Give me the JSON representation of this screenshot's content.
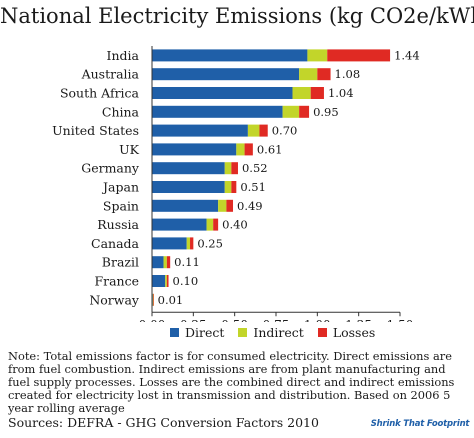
{
  "title": "National Electricity Emissions (kg CO2e/kWh)",
  "chart_data": {
    "type": "bar",
    "orientation": "horizontal",
    "stacked": true,
    "categories": [
      "India",
      "Australia",
      "South Africa",
      "China",
      "United States",
      "UK",
      "Germany",
      "Japan",
      "Spain",
      "Russia",
      "Canada",
      "Brazil",
      "France",
      "Norway"
    ],
    "totals": [
      "1.44",
      "1.08",
      "1.04",
      "0.95",
      "0.70",
      "0.61",
      "0.52",
      "0.51",
      "0.49",
      "0.40",
      "0.25",
      "0.11",
      "0.10",
      "0.01"
    ],
    "series": [
      {
        "name": "Direct",
        "color": "#1f5fa8",
        "values": [
          0.94,
          0.89,
          0.85,
          0.79,
          0.58,
          0.51,
          0.44,
          0.44,
          0.4,
          0.33,
          0.21,
          0.07,
          0.08,
          0.005
        ]
      },
      {
        "name": "Indirect",
        "color": "#c2d52a",
        "values": [
          0.12,
          0.11,
          0.11,
          0.1,
          0.07,
          0.05,
          0.04,
          0.04,
          0.05,
          0.04,
          0.02,
          0.02,
          0.01,
          0.003
        ]
      },
      {
        "name": "Losses",
        "color": "#e02a23",
        "values": [
          0.38,
          0.08,
          0.08,
          0.06,
          0.05,
          0.05,
          0.04,
          0.03,
          0.04,
          0.03,
          0.02,
          0.02,
          0.01,
          0.002
        ]
      }
    ],
    "xlim": [
      0,
      1.5
    ],
    "xticks": [
      "0.00",
      "0.25",
      "0.50",
      "0.75",
      "1.00",
      "1.25",
      "1.50"
    ],
    "legend_position": "bottom",
    "grid": false
  },
  "note": "Note: Total emissions factor is for consumed electricity.  Direct emissions are from fuel combustion.  Indirect emissions are from plant manufacturing and fuel supply processes.  Losses are the combined direct and indirect emissions created for electricity lost in transmission and distribution.  Based on 2006 5 year rolling average",
  "sources": "Sources:  DEFRA - GHG Conversion Factors 2010",
  "logo_text": "Shrink That Footprint"
}
